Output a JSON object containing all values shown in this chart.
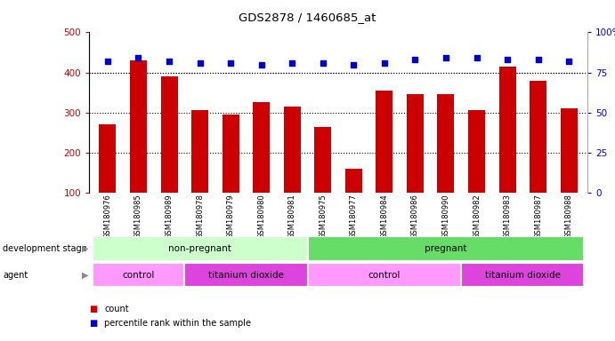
{
  "title": "GDS2878 / 1460685_at",
  "samples": [
    "GSM180976",
    "GSM180985",
    "GSM180989",
    "GSM180978",
    "GSM180979",
    "GSM180980",
    "GSM180981",
    "GSM180975",
    "GSM180977",
    "GSM180984",
    "GSM180986",
    "GSM180990",
    "GSM180982",
    "GSM180983",
    "GSM180987",
    "GSM180988"
  ],
  "counts": [
    270,
    430,
    390,
    305,
    295,
    325,
    315,
    265,
    160,
    355,
    345,
    345,
    305,
    415,
    380,
    310
  ],
  "percentiles": [
    82,
    84,
    82,
    81,
    81,
    80,
    81,
    81,
    80,
    81,
    83,
    84,
    84,
    83,
    83,
    82
  ],
  "bar_color": "#cc0000",
  "dot_color": "#0000cc",
  "ylim_left": [
    100,
    500
  ],
  "ylim_right": [
    0,
    100
  ],
  "yticks_left": [
    100,
    200,
    300,
    400,
    500
  ],
  "yticks_right": [
    0,
    25,
    50,
    75,
    100
  ],
  "grid_values": [
    200,
    300,
    400
  ],
  "development_stage_groups": [
    {
      "label": "non-pregnant",
      "start": 0,
      "end": 7,
      "color": "#ccffcc"
    },
    {
      "label": "pregnant",
      "start": 7,
      "end": 16,
      "color": "#66dd66"
    }
  ],
  "agent_groups": [
    {
      "label": "control",
      "start": 0,
      "end": 3,
      "color": "#ff99ff"
    },
    {
      "label": "titanium dioxide",
      "start": 3,
      "end": 7,
      "color": "#dd44dd"
    },
    {
      "label": "control",
      "start": 7,
      "end": 12,
      "color": "#ff99ff"
    },
    {
      "label": "titanium dioxide",
      "start": 12,
      "end": 16,
      "color": "#dd44dd"
    }
  ],
  "legend_count_color": "#cc0000",
  "legend_dot_color": "#0000cc",
  "tick_label_color_left": "#cc0000",
  "tick_label_color_right": "#0000cc",
  "background_color": "#ffffff",
  "plot_bg_color": "#ffffff"
}
